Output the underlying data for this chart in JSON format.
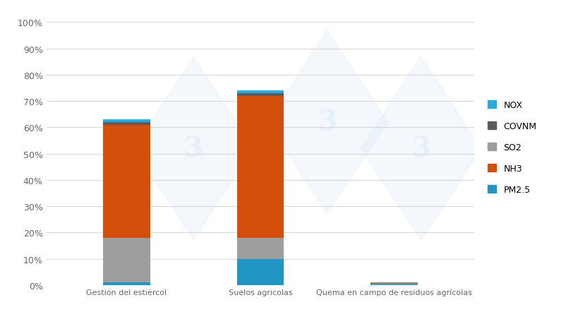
{
  "categories": [
    "Gestión del estiércol",
    "Suelos agricolas",
    "Quema en campo de residuos agrícolas"
  ],
  "series": {
    "PM2.5": [
      1.0,
      10.0,
      0.3
    ],
    "SO2": [
      17.0,
      8.0,
      0.1
    ],
    "NH3": [
      43.0,
      54.0,
      0.3
    ],
    "COVNM": [
      1.0,
      1.0,
      0.1
    ],
    "NOX": [
      1.0,
      1.0,
      0.1
    ]
  },
  "colors": {
    "PM2.5": "#2196C4",
    "SO2": "#9E9E9E",
    "NH3": "#D44E0C",
    "COVNM": "#5C5C5C",
    "NOX": "#29ABE2"
  },
  "legend_order": [
    "NOX",
    "COVNM",
    "SO2",
    "NH3",
    "PM2.5"
  ],
  "yticks": [
    0,
    10,
    20,
    30,
    40,
    50,
    60,
    70,
    80,
    90,
    100
  ],
  "ytick_labels": [
    "0%",
    "10%",
    "20%",
    "30%",
    "40%",
    "50%",
    "60%",
    "70%",
    "80%",
    "90%",
    "100%"
  ],
  "ylim": [
    0,
    105
  ],
  "background_color": "#FFFFFF",
  "grid_color": "#D8D8D8",
  "bar_width": 0.35,
  "watermark_color": "#C5DCF0"
}
